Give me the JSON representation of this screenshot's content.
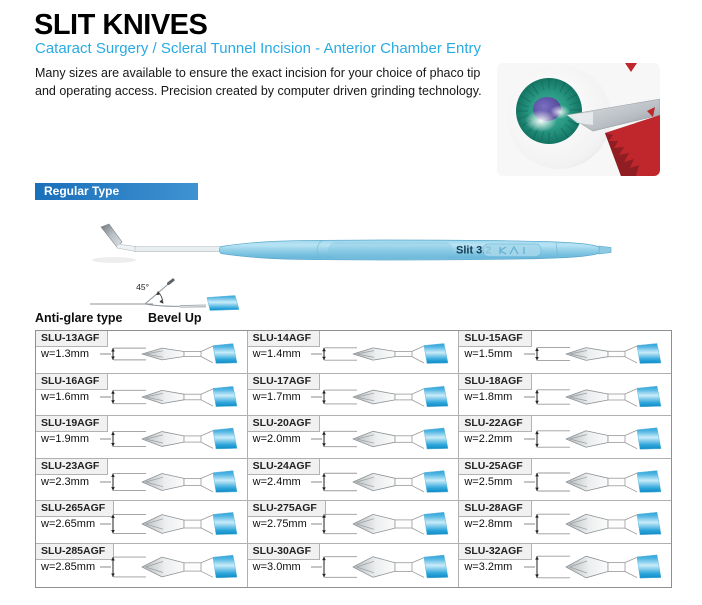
{
  "header": {
    "title": "SLIT KNIVES",
    "subtitle": "Cataract Surgery / Scleral Tunnel Incision  -  Anterior Chamber Entry",
    "description_lines": [
      "Many sizes are available to ensure the exact incision for your choice of phaco tip",
      "and operating access. Precision created by computer driven grinding technology."
    ]
  },
  "section": {
    "banner_label": "Regular Type"
  },
  "hero_knife": {
    "label": "Slit 3.2",
    "brand_mark": "KAI"
  },
  "diagram": {
    "angle_label": "45°",
    "left_label": "Anti-glare type",
    "right_label": "Bevel Up"
  },
  "colors": {
    "accent_cyan": "#29ABE2",
    "banner_blue": "#1B74C0",
    "handle_light_blue": "#8ECBE6",
    "grip_blue": "#1793CE",
    "iris_teal": "#1E8C78",
    "pupil_purple": "#5B4EA0",
    "handle_red": "#C0272D"
  },
  "products": [
    {
      "code": "SLU-13AGF",
      "width_label": "w=1.3mm",
      "width_mm": 1.3
    },
    {
      "code": "SLU-14AGF",
      "width_label": "w=1.4mm",
      "width_mm": 1.4
    },
    {
      "code": "SLU-15AGF",
      "width_label": "w=1.5mm",
      "width_mm": 1.5
    },
    {
      "code": "SLU-16AGF",
      "width_label": "w=1.6mm",
      "width_mm": 1.6
    },
    {
      "code": "SLU-17AGF",
      "width_label": "w=1.7mm",
      "width_mm": 1.7
    },
    {
      "code": "SLU-18AGF",
      "width_label": "w=1.8mm",
      "width_mm": 1.8
    },
    {
      "code": "SLU-19AGF",
      "width_label": "w=1.9mm",
      "width_mm": 1.9
    },
    {
      "code": "SLU-20AGF",
      "width_label": "w=2.0mm",
      "width_mm": 2.0
    },
    {
      "code": "SLU-22AGF",
      "width_label": "w=2.2mm",
      "width_mm": 2.2
    },
    {
      "code": "SLU-23AGF",
      "width_label": "w=2.3mm",
      "width_mm": 2.3
    },
    {
      "code": "SLU-24AGF",
      "width_label": "w=2.4mm",
      "width_mm": 2.4
    },
    {
      "code": "SLU-25AGF",
      "width_label": "w=2.5mm",
      "width_mm": 2.5
    },
    {
      "code": "SLU-265AGF",
      "width_label": "w=2.65mm",
      "width_mm": 2.65
    },
    {
      "code": "SLU-275AGF",
      "width_label": "w=2.75mm",
      "width_mm": 2.75
    },
    {
      "code": "SLU-28AGF",
      "width_label": "w=2.8mm",
      "width_mm": 2.8
    },
    {
      "code": "SLU-285AGF",
      "width_label": "w=2.85mm",
      "width_mm": 2.85
    },
    {
      "code": "SLU-30AGF",
      "width_label": "w=3.0mm",
      "width_mm": 3.0
    },
    {
      "code": "SLU-32AGF",
      "width_label": "w=3.2mm",
      "width_mm": 3.2
    }
  ]
}
